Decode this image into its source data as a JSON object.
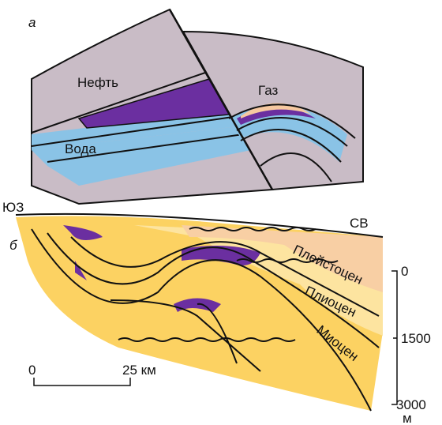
{
  "panel_a": {
    "label": "а",
    "labels": {
      "oil": "Нефть",
      "gas": "Газ",
      "water": "Вода"
    }
  },
  "panel_b": {
    "label": "б",
    "directions": [
      "ЮЗ",
      "СВ"
    ],
    "layers": [
      "Плейстоцен",
      "Плиоцен",
      "Миоцен"
    ],
    "scale_bar": {
      "start": "0",
      "end": "25 км"
    },
    "depth_scale": {
      "ticks": [
        "0",
        "1500",
        "3000"
      ],
      "unit": "м"
    }
  }
}
